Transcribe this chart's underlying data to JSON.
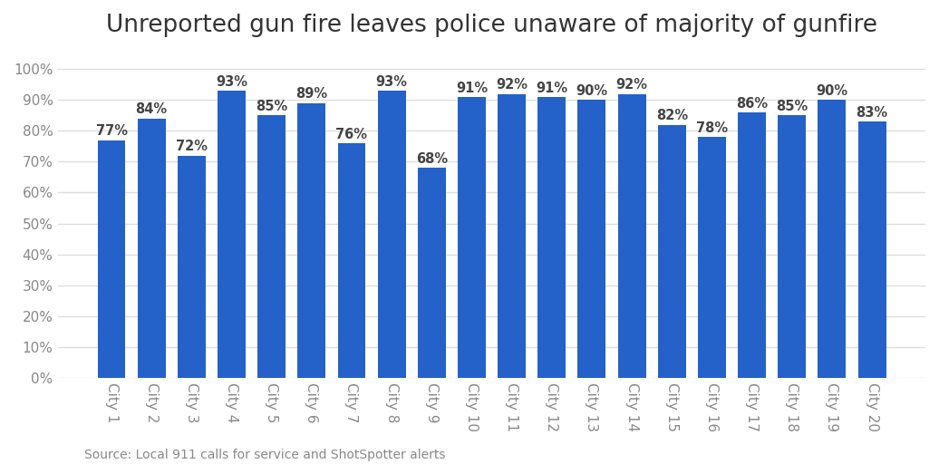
{
  "title": "Unreported gun fire leaves police unaware of majority of gunfire",
  "categories": [
    "City 1",
    "City 2",
    "City 3",
    "City 4",
    "City 5",
    "City 6",
    "City 7",
    "City 8",
    "City 9",
    "City 10",
    "City 11",
    "City 12",
    "City 13",
    "City 14",
    "City 15",
    "City 16",
    "City 17",
    "City 18",
    "City 19",
    "City 20"
  ],
  "values": [
    77,
    84,
    72,
    93,
    85,
    89,
    76,
    93,
    68,
    91,
    92,
    91,
    90,
    92,
    82,
    78,
    86,
    85,
    90,
    83
  ],
  "bar_color": "#2461c8",
  "background_color": "#ffffff",
  "ytick_values": [
    0,
    10,
    20,
    30,
    40,
    50,
    60,
    70,
    80,
    90,
    100
  ],
  "title_fontsize": 19,
  "label_fontsize": 10.5,
  "tick_fontsize": 11,
  "source_text": "Source: Local 911 calls for service and ShotSpotter alerts",
  "source_fontsize": 10
}
